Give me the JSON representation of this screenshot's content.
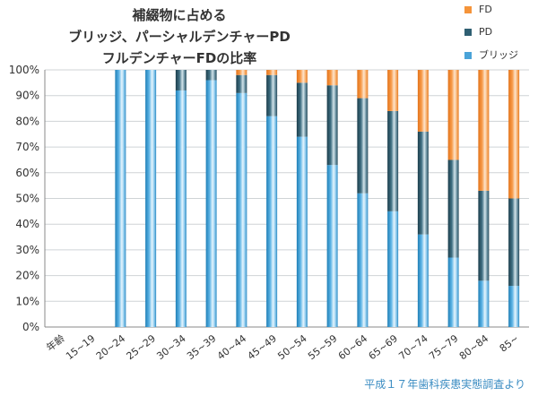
{
  "chart_data": {
    "type": "bar",
    "stacked": true,
    "title": [
      "補綴物に占める",
      "ブリッジ、パーシャルデンチャーPD",
      "フルデンチャーFDの比率"
    ],
    "xlabel": "年齢",
    "ylabel": "",
    "ylim": [
      0,
      100
    ],
    "yticks": [
      "0%",
      "10%",
      "20%",
      "30%",
      "40%",
      "50%",
      "60%",
      "70%",
      "80%",
      "90%",
      "100%"
    ],
    "categories": [
      "15~19",
      "20~24",
      "25~29",
      "30~34",
      "35~39",
      "40~44",
      "45~49",
      "50~54",
      "55~59",
      "60~64",
      "65~69",
      "70~74",
      "75~79",
      "80~84",
      "85~"
    ],
    "series": [
      {
        "name": "ブリッジ",
        "color": "#4aa3d8",
        "values": [
          0,
          100,
          100,
          92,
          96,
          91,
          82,
          74,
          63,
          52,
          45,
          36,
          27,
          18,
          16
        ]
      },
      {
        "name": "PD",
        "color": "#2f5f72",
        "values": [
          0,
          0,
          0,
          8,
          4,
          7,
          16,
          21,
          31,
          37,
          39,
          40,
          38,
          35,
          34
        ]
      },
      {
        "name": "FD",
        "color": "#f5943a",
        "values": [
          0,
          0,
          0,
          0,
          0,
          2,
          2,
          5,
          6,
          11,
          16,
          24,
          35,
          47,
          50
        ]
      }
    ],
    "legend": {
      "position": "top-right"
    },
    "grid": true,
    "source": "平成１７年歯科疾患実態調査より"
  }
}
